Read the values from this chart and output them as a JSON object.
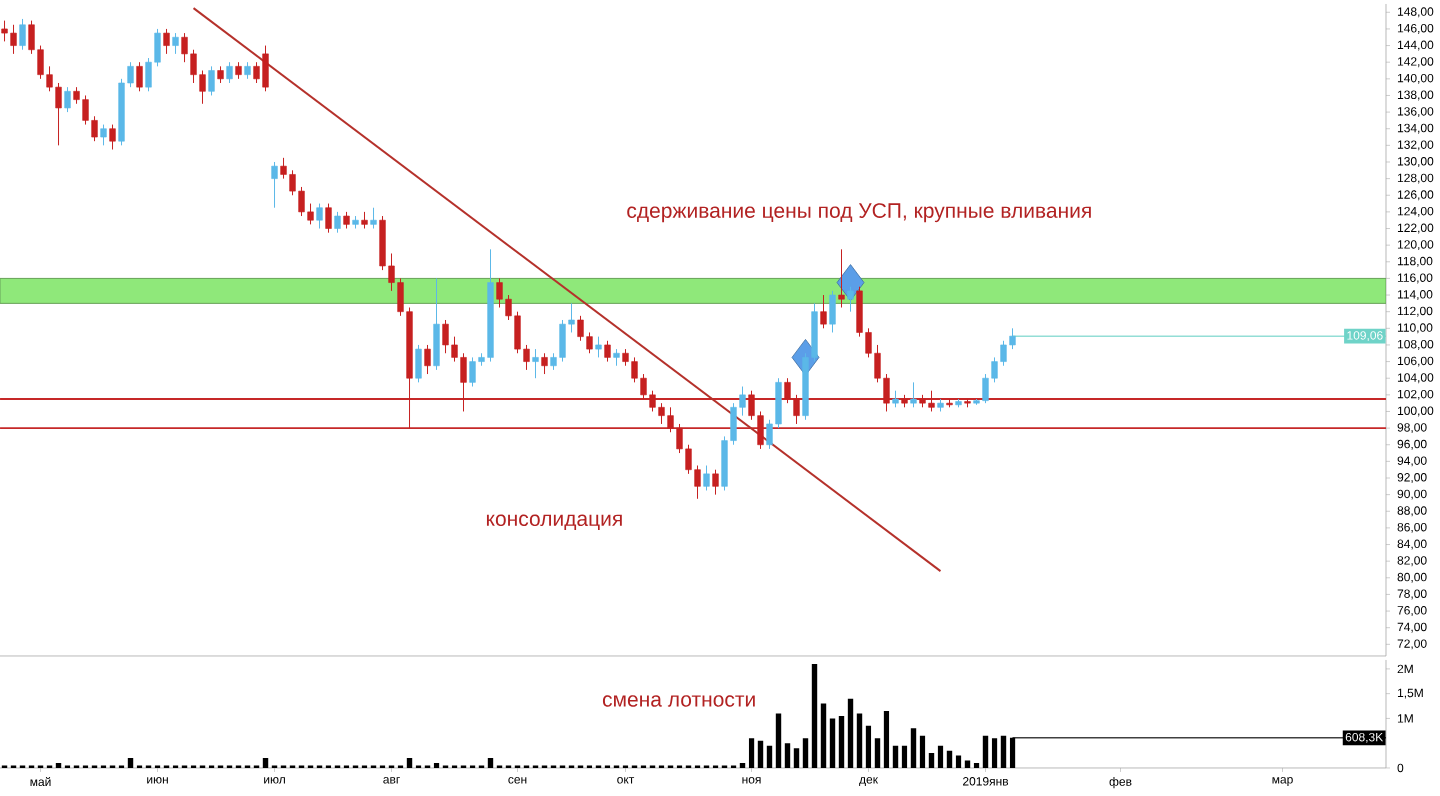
{
  "chart_data": [
    {
      "type": "candlestick",
      "tick_labels": "y",
      "ylim": [
        70.6,
        149
      ],
      "yticks": [
        {
          "value": 72,
          "label": "72,00"
        },
        {
          "value": 74,
          "label": "74,00"
        },
        {
          "value": 76,
          "label": "76,00"
        },
        {
          "value": 78,
          "label": "78,00"
        },
        {
          "value": 80,
          "label": "80,00"
        },
        {
          "value": 82,
          "label": "82,00"
        },
        {
          "value": 84,
          "label": "84,00"
        },
        {
          "value": 86,
          "label": "86,00"
        },
        {
          "value": 88,
          "label": "88,00"
        },
        {
          "value": 90,
          "label": "90,00"
        },
        {
          "value": 92,
          "label": "92,00"
        },
        {
          "value": 94,
          "label": "94,00"
        },
        {
          "value": 96,
          "label": "96,00"
        },
        {
          "value": 98,
          "label": "98,00"
        },
        {
          "value": 100,
          "label": "100,00"
        },
        {
          "value": 102,
          "label": "102,00"
        },
        {
          "value": 104,
          "label": "104,00"
        },
        {
          "value": 106,
          "label": "106,00"
        },
        {
          "value": 108,
          "label": "108,00"
        },
        {
          "value": 110,
          "label": "110,00"
        },
        {
          "value": 112,
          "label": "112,00"
        },
        {
          "value": 114,
          "label": "114,00"
        },
        {
          "value": 116,
          "label": "116,00"
        },
        {
          "value": 118,
          "label": "118,00"
        },
        {
          "value": 120,
          "label": "120,00"
        },
        {
          "value": 122,
          "label": "122,00"
        },
        {
          "value": 124,
          "label": "124,00"
        },
        {
          "value": 126,
          "label": "126,00"
        },
        {
          "value": 128,
          "label": "128,00"
        },
        {
          "value": 130,
          "label": "130,00"
        },
        {
          "value": 132,
          "label": "132,00"
        },
        {
          "value": 134,
          "label": "134,00"
        },
        {
          "value": 136,
          "label": "136,00"
        },
        {
          "value": 138,
          "label": "138,00"
        },
        {
          "value": 140,
          "label": "140,00"
        },
        {
          "value": 142,
          "label": "142,00"
        },
        {
          "value": 144,
          "label": "144,00"
        },
        {
          "value": 146,
          "label": "146,00"
        },
        {
          "value": 148,
          "label": "148,00"
        }
      ],
      "categories": [
        null,
        null,
        null,
        null,
        null,
        null,
        null,
        null,
        null,
        null,
        null,
        null,
        null,
        null,
        null,
        null,
        null,
        null,
        null,
        null,
        null,
        null,
        null,
        null,
        null,
        null,
        null,
        null,
        null,
        null,
        null,
        null,
        null,
        null,
        null,
        null,
        null,
        null,
        null,
        null,
        null,
        null,
        null,
        null,
        null,
        null,
        null,
        null,
        null,
        null,
        null,
        null,
        null,
        null,
        null,
        null,
        null,
        null,
        null,
        null,
        null,
        null,
        null,
        null,
        null,
        null,
        null,
        null,
        null,
        null,
        null,
        null,
        null,
        null,
        null,
        null,
        null,
        null,
        null,
        null,
        null,
        null,
        null,
        null,
        null,
        null,
        null,
        null,
        null,
        null,
        null,
        null,
        null,
        null,
        null,
        null,
        null,
        null,
        null,
        null,
        null,
        null,
        null,
        null,
        null,
        null,
        null,
        null,
        null,
        null,
        null,
        null,
        null,
        null,
        null,
        null,
        null,
        null,
        null,
        null,
        null,
        null,
        null,
        null,
        null,
        null,
        null,
        null,
        null,
        null,
        null,
        null,
        null,
        null,
        null,
        null,
        null,
        null,
        null,
        null,
        null,
        null,
        null,
        null,
        null,
        null,
        null,
        null,
        null,
        null,
        null,
        null,
        null,
        null
      ],
      "ohlc": [
        [
          146,
          147,
          144.5,
          145.5
        ],
        [
          145.5,
          146.5,
          143,
          144
        ],
        [
          144,
          147.2,
          143.5,
          146.5
        ],
        [
          146.5,
          147,
          143,
          143.5
        ],
        [
          143.5,
          144,
          140,
          140.5
        ],
        [
          140.5,
          141.5,
          138.5,
          139
        ],
        [
          139,
          139.5,
          132,
          136.5
        ],
        [
          136.5,
          139,
          136,
          138.5
        ],
        [
          138.5,
          139,
          137,
          137.5
        ],
        [
          137.5,
          138,
          134.5,
          135
        ],
        [
          135,
          135.5,
          132.5,
          133
        ],
        [
          133,
          134.5,
          132,
          134
        ],
        [
          134,
          134.5,
          131.5,
          132.5
        ],
        [
          132.5,
          140,
          132,
          139.5
        ],
        [
          139.5,
          142,
          139,
          141.5
        ],
        [
          141.5,
          142,
          138.5,
          139
        ],
        [
          139,
          142.5,
          138.5,
          142
        ],
        [
          142,
          146,
          141.5,
          145.5
        ],
        [
          145.5,
          146,
          143,
          144
        ],
        [
          144,
          145.5,
          143,
          145
        ],
        [
          145,
          145.5,
          142,
          143
        ],
        [
          143,
          143.5,
          139.5,
          140.5
        ],
        [
          140.5,
          141,
          137,
          138.5
        ],
        [
          138.5,
          141.5,
          138,
          141
        ],
        [
          141,
          141.5,
          139.5,
          140
        ],
        [
          140,
          142,
          139.5,
          141.5
        ],
        [
          141.5,
          142,
          140,
          140.5
        ],
        [
          140.5,
          142,
          140,
          141.5
        ],
        [
          141.5,
          142,
          139.5,
          140
        ],
        [
          143,
          144,
          138.5,
          139
        ],
        [
          128,
          130,
          124.5,
          129.5
        ],
        [
          129.5,
          130.5,
          128,
          128.5
        ],
        [
          128.5,
          129,
          126,
          126.5
        ],
        [
          126.5,
          127,
          123.5,
          124
        ],
        [
          124,
          125,
          122.5,
          123
        ],
        [
          123,
          125,
          122,
          124.5
        ],
        [
          124.5,
          125,
          121.5,
          122
        ],
        [
          122,
          124,
          121.5,
          123.5
        ],
        [
          123.5,
          124,
          122,
          122.5
        ],
        [
          122.5,
          123.5,
          122,
          123
        ],
        [
          123,
          124,
          122,
          122.5
        ],
        [
          122.5,
          124.5,
          122,
          123
        ],
        [
          123,
          123.5,
          117,
          117.5
        ],
        [
          117.5,
          119,
          114.5,
          115.5
        ],
        [
          115.5,
          116,
          111.5,
          112
        ],
        [
          112,
          112.5,
          98,
          104
        ],
        [
          104,
          108,
          103.5,
          107.5
        ],
        [
          107.5,
          108,
          104.5,
          105.5
        ],
        [
          105.5,
          116,
          105,
          110.5
        ],
        [
          110.5,
          111,
          107,
          108
        ],
        [
          108,
          109,
          106,
          106.5
        ],
        [
          106.5,
          107,
          100,
          103.5
        ],
        [
          103.5,
          106.5,
          103,
          106
        ],
        [
          106,
          107,
          105.5,
          106.5
        ],
        [
          106.5,
          119.5,
          106,
          115.5
        ],
        [
          115.5,
          116,
          112.5,
          113.5
        ],
        [
          113.5,
          114,
          111,
          111.5
        ],
        [
          111.5,
          112,
          107,
          107.5
        ],
        [
          107.5,
          108,
          105,
          106
        ],
        [
          106,
          107.5,
          104,
          106.5
        ],
        [
          106.5,
          107,
          104.5,
          105.5
        ],
        [
          105.5,
          107,
          105,
          106.5
        ],
        [
          106.5,
          111,
          106,
          110.5
        ],
        [
          110.5,
          113,
          109.5,
          111
        ],
        [
          111,
          111.5,
          108.5,
          109
        ],
        [
          109,
          109.5,
          107,
          107.5
        ],
        [
          107.5,
          109,
          106.5,
          108
        ],
        [
          108,
          108.5,
          106,
          106.5
        ],
        [
          106.5,
          107.5,
          105.5,
          107
        ],
        [
          107,
          107.5,
          105.5,
          106
        ],
        [
          106,
          106.5,
          103.5,
          104
        ],
        [
          104,
          104.5,
          101.5,
          102
        ],
        [
          102,
          102.5,
          100,
          100.5
        ],
        [
          100.5,
          101,
          98.5,
          99.5
        ],
        [
          99.5,
          100.5,
          97.5,
          98
        ],
        [
          98,
          98.5,
          95,
          95.5
        ],
        [
          95.5,
          96,
          92.5,
          93
        ],
        [
          93,
          93.5,
          89.5,
          91
        ],
        [
          91,
          93.5,
          90.5,
          92.5
        ],
        [
          92.5,
          93,
          90,
          91
        ],
        [
          91,
          97,
          90.5,
          96.5
        ],
        [
          96.5,
          101,
          96,
          100.5
        ],
        [
          100.5,
          103,
          99.5,
          102
        ],
        [
          102,
          102.5,
          99,
          99.5
        ],
        [
          99.5,
          100,
          95.5,
          96
        ],
        [
          96,
          99,
          95.5,
          98.5
        ],
        [
          98.5,
          104,
          98,
          103.5
        ],
        [
          103.5,
          104,
          101,
          101.5
        ],
        [
          101.5,
          102,
          98.5,
          99.5
        ],
        [
          99.5,
          107,
          99,
          106.5
        ],
        [
          106.5,
          113,
          106,
          112
        ],
        [
          112,
          114,
          110,
          110.5
        ],
        [
          110.5,
          114.5,
          109.5,
          114
        ],
        [
          114,
          119.5,
          112.5,
          113.5
        ],
        [
          113.5,
          115,
          112,
          114.5
        ],
        [
          114.5,
          115,
          109,
          109.5
        ],
        [
          109.5,
          110,
          106.5,
          107
        ],
        [
          107,
          108,
          103.5,
          104
        ],
        [
          104,
          104.5,
          100,
          101
        ],
        [
          101,
          102.5,
          100.5,
          101.5
        ],
        [
          101.5,
          102,
          100.5,
          101
        ],
        [
          101,
          103.5,
          100.5,
          101.5
        ],
        [
          101.5,
          102,
          100.5,
          101
        ],
        [
          101,
          102.5,
          100,
          100.5
        ],
        [
          100.5,
          101.5,
          100,
          101
        ],
        [
          101,
          101.5,
          100.5,
          100.8
        ],
        [
          100.8,
          101.5,
          100.5,
          101.2
        ],
        [
          101.2,
          101.5,
          100.5,
          101
        ],
        [
          101,
          101.5,
          100.8,
          101.3
        ],
        [
          101.3,
          104.5,
          101,
          104
        ],
        [
          104,
          106.5,
          103.5,
          106
        ],
        [
          106,
          108.5,
          105.5,
          108
        ],
        [
          108,
          110,
          107.5,
          109.06
        ],
        null,
        null,
        null,
        null,
        null,
        null,
        null,
        null,
        null,
        null,
        null,
        null,
        null,
        null,
        null,
        null,
        null,
        null,
        null,
        null,
        null,
        null,
        null,
        null,
        null,
        null,
        null,
        null,
        null,
        null,
        null,
        null,
        null,
        null,
        null,
        null,
        null,
        null,
        null,
        null,
        null
      ],
      "colors": [
        "#c62020",
        "#c62020",
        "#5bb8e8",
        "#c62020",
        "#c62020",
        "#c62020",
        "#c62020",
        "#5bb8e8",
        "#c62020",
        "#c62020",
        "#c62020",
        "#5bb8e8",
        "#c62020",
        "#5bb8e8",
        "#5bb8e8",
        "#c62020",
        "#5bb8e8",
        "#5bb8e8",
        "#c62020",
        "#5bb8e8",
        "#c62020",
        "#c62020",
        "#c62020",
        "#5bb8e8",
        "#c62020",
        "#5bb8e8",
        "#c62020",
        "#5bb8e8",
        "#c62020",
        "#c62020",
        "#5bb8e8",
        "#c62020",
        "#c62020",
        "#c62020",
        "#c62020",
        "#5bb8e8",
        "#c62020",
        "#5bb8e8",
        "#c62020",
        "#5bb8e8",
        "#c62020",
        "#5bb8e8",
        "#c62020",
        "#c62020",
        "#c62020",
        "#c62020",
        "#5bb8e8",
        "#c62020",
        "#5bb8e8",
        "#c62020",
        "#c62020",
        "#c62020",
        "#5bb8e8",
        "#5bb8e8",
        "#5bb8e8",
        "#c62020",
        "#c62020",
        "#c62020",
        "#c62020",
        "#5bb8e8",
        "#c62020",
        "#5bb8e8",
        "#5bb8e8",
        "#5bb8e8",
        "#c62020",
        "#c62020",
        "#5bb8e8",
        "#c62020",
        "#5bb8e8",
        "#c62020",
        "#c62020",
        "#c62020",
        "#c62020",
        "#c62020",
        "#c62020",
        "#c62020",
        "#c62020",
        "#c62020",
        "#5bb8e8",
        "#c62020",
        "#5bb8e8",
        "#5bb8e8",
        "#5bb8e8",
        "#c62020",
        "#c62020",
        "#5bb8e8",
        "#5bb8e8",
        "#c62020",
        "#c62020",
        "#5bb8e8",
        "#5bb8e8",
        "#c62020",
        "#5bb8e8",
        "#c62020",
        "#5bb8e8",
        "#c62020",
        "#c62020",
        "#c62020",
        "#c62020",
        "#5bb8e8",
        "#c62020",
        "#5bb8e8",
        "#c62020",
        "#c62020",
        "#5bb8e8",
        "#c62020",
        "#5bb8e8",
        "#c62020",
        "#5bb8e8",
        "#5bb8e8",
        "#5bb8e8",
        "#5bb8e8",
        "#5bb8e8",
        null,
        null,
        null,
        null,
        null,
        null,
        null,
        null,
        null,
        null,
        null,
        null,
        null,
        null,
        null,
        null,
        null,
        null,
        null,
        null,
        null,
        null,
        null,
        null,
        null,
        null,
        null,
        null,
        null,
        null,
        null,
        null,
        null,
        null,
        null,
        null,
        null,
        null,
        null,
        null,
        null
      ],
      "series": [
        {
          "type": "line",
          "color": "#b5312b",
          "values": [
            null,
            null,
            null,
            null,
            null,
            null,
            null,
            null,
            null,
            null,
            null,
            null,
            null,
            null,
            null,
            null,
            null,
            null,
            null,
            null,
            null,
            148.5,
            null,
            null,
            null,
            null,
            null,
            null,
            null,
            null,
            null,
            null,
            null,
            null,
            null,
            null,
            null,
            null,
            null,
            null,
            null,
            null,
            null,
            null,
            null,
            null,
            null,
            null,
            null,
            null,
            null,
            null,
            null,
            null,
            null,
            null,
            null,
            null,
            null,
            null,
            null,
            null,
            null,
            null,
            null,
            null,
            null,
            null,
            null,
            null,
            null,
            null,
            null,
            null,
            null,
            null,
            null,
            null,
            null,
            null,
            null,
            null,
            null,
            null,
            null,
            null,
            null,
            null,
            null,
            null,
            null,
            null,
            null,
            null,
            null,
            null,
            null,
            null,
            null,
            null,
            null,
            null,
            null,
            null,
            80.8,
            null,
            null,
            null,
            null,
            null,
            null,
            null,
            null,
            null,
            null,
            null,
            null,
            null,
            null,
            null,
            null,
            null,
            null,
            null,
            null,
            null,
            null,
            null,
            null,
            null,
            null,
            null,
            null,
            null,
            null,
            null,
            null,
            null,
            null,
            null,
            null,
            null,
            null,
            null,
            null,
            null,
            null,
            null,
            null,
            null,
            null,
            null,
            null,
            null
          ]
        },
        {
          "type": "scatter",
          "marker": "diamond",
          "color": "#5b9ee8",
          "values": [
            null,
            null,
            null,
            null,
            null,
            null,
            null,
            null,
            null,
            null,
            null,
            null,
            null,
            null,
            null,
            null,
            null,
            null,
            null,
            null,
            null,
            null,
            null,
            null,
            null,
            null,
            null,
            null,
            null,
            null,
            null,
            null,
            null,
            null,
            null,
            null,
            null,
            null,
            null,
            null,
            null,
            null,
            null,
            null,
            null,
            null,
            null,
            null,
            null,
            null,
            null,
            null,
            null,
            null,
            null,
            null,
            null,
            null,
            null,
            null,
            null,
            null,
            null,
            null,
            null,
            null,
            null,
            null,
            null,
            null,
            null,
            null,
            null,
            null,
            null,
            null,
            null,
            null,
            null,
            null,
            null,
            null,
            null,
            null,
            null,
            null,
            null,
            null,
            null,
            106.5,
            null,
            null,
            null,
            null,
            115.5,
            null,
            null,
            null,
            null,
            null,
            null,
            null,
            null,
            null,
            null,
            null,
            null,
            null,
            null,
            null,
            null,
            null,
            null,
            null,
            null,
            null,
            null,
            null,
            null,
            null,
            null,
            null,
            null,
            null,
            null,
            null,
            null,
            null,
            null,
            null,
            null,
            null,
            null,
            null,
            null,
            null,
            null,
            null,
            null,
            null,
            null,
            null,
            null,
            null,
            null,
            null,
            null,
            null,
            null,
            null,
            null,
            null,
            null,
            null
          ]
        }
      ],
      "bands": [
        {
          "axis": "y",
          "from": 113,
          "to": 116,
          "color": "#8fe87a"
        }
      ],
      "ref_lines": [
        {
          "axis": "y",
          "value": 109.06,
          "label": "109,06",
          "color": "#6fd3c8"
        },
        {
          "axis": "y",
          "value": 98,
          "color": "#c62828"
        },
        {
          "axis": "y",
          "value": 101.5,
          "color": "#c62828"
        }
      ],
      "annotations": [
        "сдерживание цены под УСП, крупные вливания",
        "консолидация"
      ]
    },
    {
      "type": "bar",
      "color": "#000000",
      "ylim": [
        0,
        2180000
      ],
      "yticks": [
        0,
        {
          "value": 1000000,
          "label": "1M"
        },
        {
          "value": 1500000,
          "label": "1,5M"
        },
        {
          "value": 2000000,
          "label": "2M"
        }
      ],
      "categories": [
        null,
        null,
        null,
        null,
        "май",
        null,
        null,
        null,
        null,
        null,
        null,
        null,
        null,
        null,
        null,
        null,
        null,
        "июн",
        null,
        null,
        null,
        null,
        null,
        null,
        null,
        null,
        null,
        null,
        null,
        null,
        "июл",
        null,
        null,
        null,
        null,
        null,
        null,
        null,
        null,
        null,
        null,
        null,
        null,
        "авг",
        null,
        null,
        null,
        null,
        null,
        null,
        null,
        null,
        null,
        null,
        null,
        null,
        null,
        "сен",
        null,
        null,
        null,
        null,
        null,
        null,
        null,
        null,
        null,
        null,
        null,
        "окт",
        null,
        null,
        null,
        null,
        null,
        null,
        null,
        null,
        null,
        null,
        null,
        null,
        null,
        "ноя",
        null,
        null,
        null,
        null,
        null,
        null,
        null,
        null,
        null,
        null,
        null,
        null,
        "дек",
        null,
        null,
        null,
        null,
        null,
        null,
        null,
        null,
        null,
        null,
        null,
        null,
        "2019янв",
        null,
        null,
        null,
        null,
        null,
        null,
        null,
        null,
        null,
        null,
        null,
        null,
        null,
        null,
        "фев",
        null,
        null,
        null,
        null,
        null,
        null,
        null,
        null,
        null,
        null,
        null,
        null,
        null,
        null,
        null,
        null,
        null,
        "мар",
        null,
        null,
        null,
        null,
        null,
        null,
        null,
        null,
        null,
        null,
        null
      ],
      "values": [
        50000,
        50000,
        50000,
        50000,
        50000,
        50000,
        100000,
        50000,
        50000,
        50000,
        50000,
        50000,
        50000,
        50000,
        200000,
        50000,
        50000,
        50000,
        50000,
        50000,
        50000,
        50000,
        50000,
        50000,
        50000,
        50000,
        50000,
        50000,
        50000,
        200000,
        50000,
        50000,
        50000,
        50000,
        50000,
        50000,
        50000,
        50000,
        50000,
        50000,
        50000,
        50000,
        50000,
        50000,
        50000,
        200000,
        50000,
        50000,
        100000,
        50000,
        50000,
        50000,
        50000,
        50000,
        200000,
        50000,
        50000,
        50000,
        50000,
        50000,
        50000,
        50000,
        50000,
        50000,
        50000,
        50000,
        50000,
        50000,
        50000,
        50000,
        50000,
        50000,
        50000,
        50000,
        50000,
        50000,
        50000,
        50000,
        50000,
        50000,
        50000,
        50000,
        100000,
        600000,
        550000,
        450000,
        1100000,
        500000,
        400000,
        600000,
        2100000,
        1300000,
        1000000,
        1050000,
        1400000,
        1100000,
        850000,
        600000,
        1150000,
        450000,
        450000,
        800000,
        650000,
        300000,
        450000,
        350000,
        250000,
        150000,
        100000,
        650000,
        600000,
        650000,
        608300,
        null,
        null,
        null,
        null,
        null,
        null,
        null,
        null,
        null,
        null,
        null,
        null,
        null,
        null,
        null,
        null,
        null,
        null,
        null,
        null,
        null,
        null,
        null,
        null,
        null,
        null,
        null,
        null,
        null,
        null,
        null,
        null,
        null,
        null,
        null,
        null,
        null,
        null,
        null,
        null,
        null
      ],
      "ref_lines": [
        {
          "axis": "y",
          "value": 608300,
          "label": "608,3K",
          "color": "#000000"
        }
      ],
      "annotations": [
        "смена лотности"
      ]
    }
  ]
}
